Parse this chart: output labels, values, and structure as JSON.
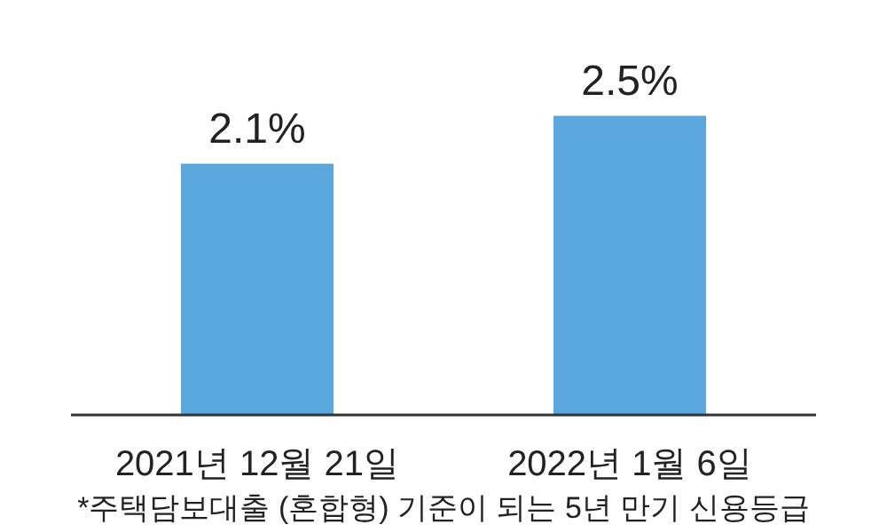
{
  "chart_data": {
    "type": "bar",
    "categories": [
      "2021년 12월 21일",
      "2022년 1월 6일"
    ],
    "values": [
      2.1,
      2.5
    ],
    "color": "#5aa8de",
    "value_labels": [
      "2.1%",
      "2.5%"
    ],
    "annotations": [
      "*주택담보대출 (혼합형) 기준이 되는 5년 만기 신용등급"
    ]
  }
}
